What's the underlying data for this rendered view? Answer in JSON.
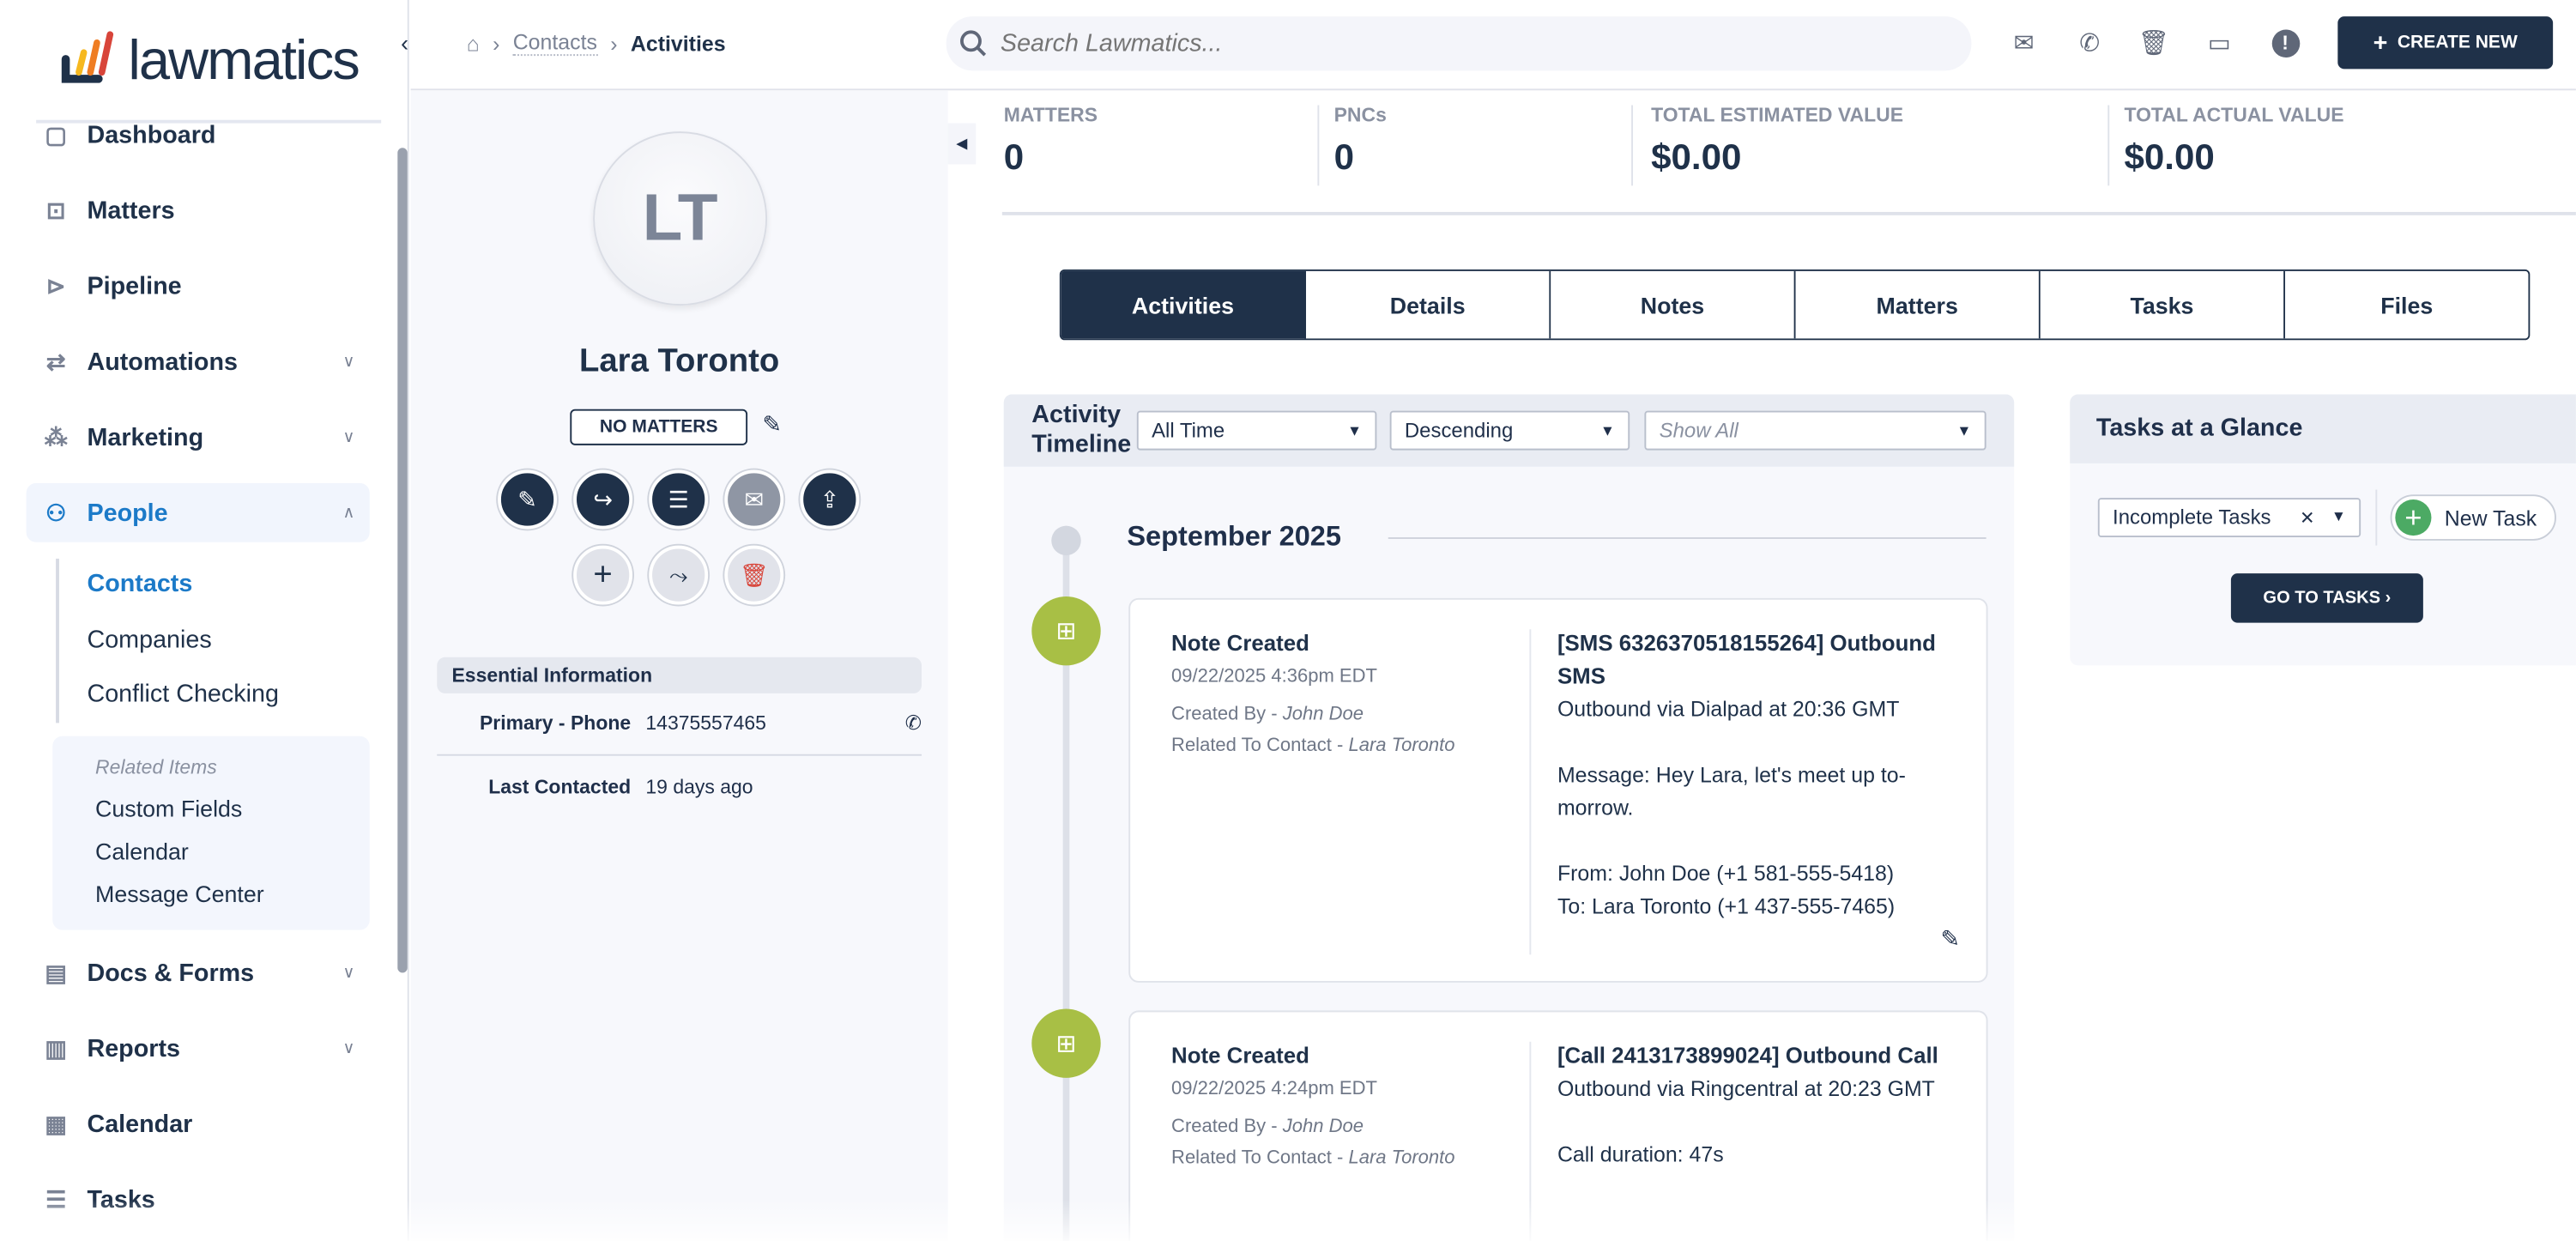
{
  "app": {
    "logo_text": "lawmatics",
    "brand_colors": {
      "navy": "#1f3149",
      "accent_green": "#a8bf45",
      "people_blue": "#1c7ac8"
    }
  },
  "sidebar": {
    "items": [
      {
        "label": "Dashboard",
        "icon": "dashboard-icon"
      },
      {
        "label": "Matters",
        "icon": "briefcase-icon"
      },
      {
        "label": "Pipeline",
        "icon": "pipeline-icon"
      },
      {
        "label": "Automations",
        "icon": "automations-icon",
        "chevron": "down"
      },
      {
        "label": "Marketing",
        "icon": "marketing-icon",
        "chevron": "down"
      },
      {
        "label": "People",
        "icon": "people-icon",
        "chevron": "up",
        "active": true
      },
      {
        "label": "Docs & Forms",
        "icon": "document-icon",
        "chevron": "down"
      },
      {
        "label": "Reports",
        "icon": "reports-icon",
        "chevron": "down"
      },
      {
        "label": "Calendar",
        "icon": "calendar-icon"
      },
      {
        "label": "Tasks",
        "icon": "tasks-icon"
      }
    ],
    "people_sub": [
      {
        "label": "Contacts",
        "active": true
      },
      {
        "label": "Companies"
      },
      {
        "label": "Conflict Checking"
      }
    ],
    "related": {
      "heading": "Related Items",
      "items": [
        "Custom Fields",
        "Calendar",
        "Message Center"
      ]
    }
  },
  "header": {
    "breadcrumb": [
      "Contacts",
      "Activities"
    ],
    "search_placeholder": "Search Lawmatics...",
    "icons": [
      "email-icon",
      "phone-icon",
      "trash-icon",
      "message-icon",
      "alert-icon"
    ],
    "create_new": "CREATE NEW"
  },
  "profile": {
    "initials": "LT",
    "name": "Lara Toronto",
    "matters_badge": "NO MATTERS",
    "essential_title": "Essential Information",
    "fields": [
      {
        "label": "Primary - Phone",
        "value": "14375557465"
      },
      {
        "label": "Last Contacted",
        "value": "19 days ago"
      }
    ]
  },
  "stats": [
    {
      "label": "MATTERS",
      "value": "0"
    },
    {
      "label": "PNCs",
      "value": "0"
    },
    {
      "label": "TOTAL ESTIMATED VALUE",
      "value": "$0.00"
    },
    {
      "label": "TOTAL ACTUAL VALUE",
      "value": "$0.00"
    }
  ],
  "tabs": [
    {
      "label": "Activities",
      "active": true
    },
    {
      "label": "Details"
    },
    {
      "label": "Notes"
    },
    {
      "label": "Matters"
    },
    {
      "label": "Tasks"
    },
    {
      "label": "Files"
    }
  ],
  "timeline": {
    "title_line1": "Activity",
    "title_line2": "Timeline",
    "filters": {
      "range": "All Time",
      "order": "Descending",
      "type_placeholder": "Show All"
    },
    "month": "September 2025",
    "entries": [
      {
        "type": "Note Created",
        "datetime": "09/22/2025 4:36pm EDT",
        "created_by_label": "Created By - ",
        "created_by": "John Doe",
        "related_label": "Related To Contact - ",
        "related": "Lara Toronto",
        "title": "[SMS 6326370518155264] Outbound SMS",
        "body": "Outbound via Dialpad at 20:36 GMT\n\nMessage: Hey Lara, let's meet up to-morrow.\n\nFrom: John Doe (+1 581-555-5418)\nTo: Lara Toronto (+1 437-555-7465)"
      },
      {
        "type": "Note Created",
        "datetime": "09/22/2025 4:24pm EDT",
        "created_by_label": "Created By - ",
        "created_by": "John Doe",
        "related_label": "Related To Contact - ",
        "related": "Lara Toronto",
        "title": "[Call 2413173899024] Outbound Call",
        "body": "Outbound via Ringcentral at 20:23 GMT\n\nCall duration: 47s"
      }
    ]
  },
  "tasks_glance": {
    "title": "Tasks at a Glance",
    "filter": "Incomplete Tasks",
    "new_task": "New Task",
    "go_to_tasks": "GO TO TASKS ›"
  }
}
